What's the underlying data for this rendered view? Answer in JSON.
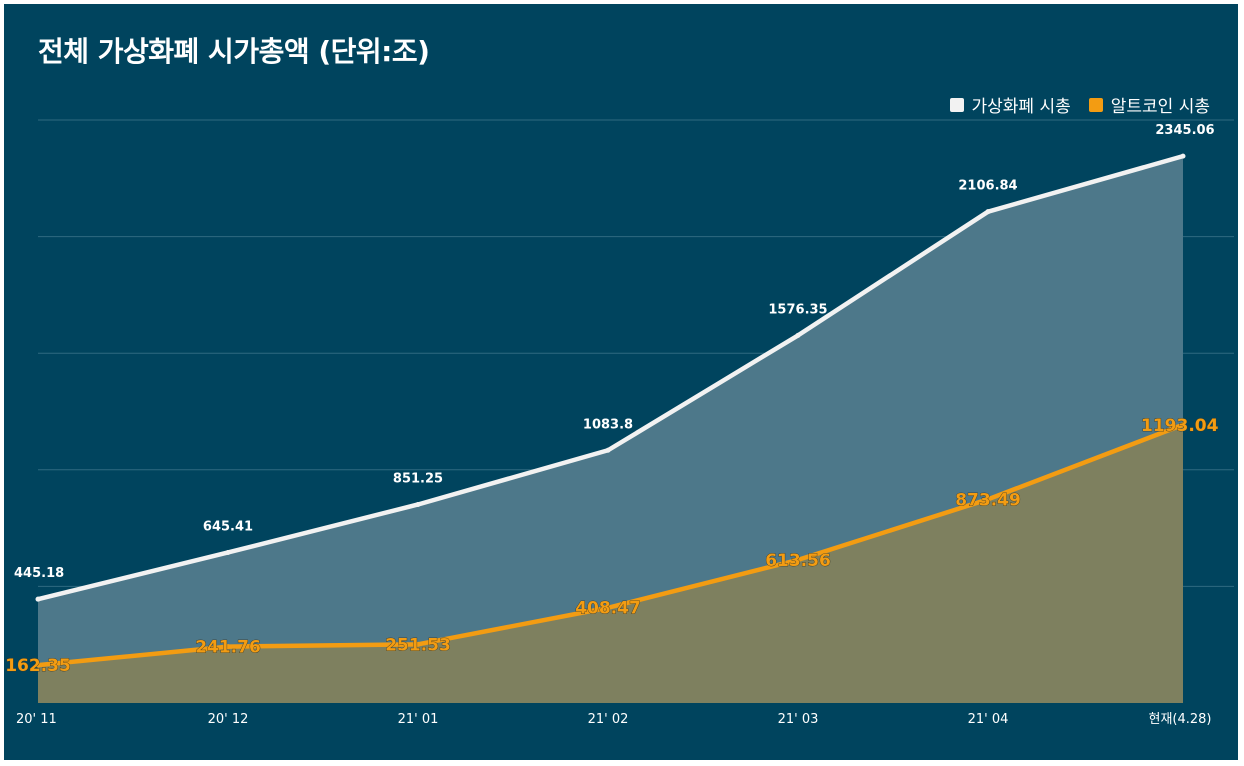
{
  "title": "전체 가상화폐 시가총액 (단위:조)",
  "legend": [
    {
      "label": "가상화폐 시총",
      "color": "#f2f2f2"
    },
    {
      "label": "알트코인 시총",
      "color": "#f39c12"
    }
  ],
  "chart_data": {
    "type": "area",
    "title": "전체 가상화폐 시가총액 (단위:조)",
    "categories": [
      "20' 11",
      "20' 12",
      "21' 01",
      "21' 02",
      "21' 03",
      "21' 04",
      "현재(4.28)"
    ],
    "series": [
      {
        "name": "가상화폐 시총",
        "values": [
          445.18,
          645.41,
          851.25,
          1083.8,
          1576.35,
          2106.84,
          2345.06
        ],
        "color": "#f2f2f2"
      },
      {
        "name": "알트코인 시총",
        "values": [
          162.35,
          241.76,
          251.53,
          408.47,
          613.56,
          873.49,
          1193.04
        ],
        "color": "#f39c12"
      }
    ],
    "value_labels": {
      "total": [
        "445.18",
        "645.41",
        "851.25",
        "1083.8",
        "1576.35",
        "2106.84",
        "2345.06"
      ],
      "alt": [
        "162.35",
        "241.76",
        "251.53",
        "408.47",
        "613.56",
        "873.49",
        "1193.04"
      ]
    },
    "ylim": [
      0,
      2500
    ],
    "grid": true,
    "legend_position": "top-right"
  }
}
